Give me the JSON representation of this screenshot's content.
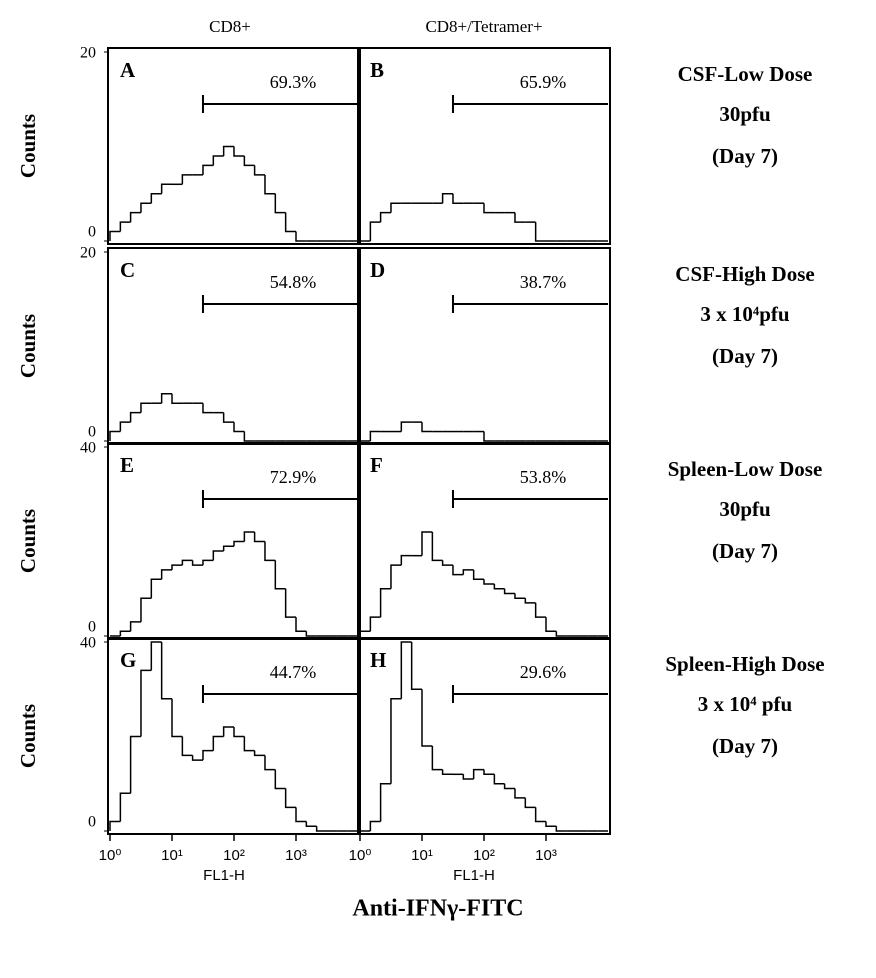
{
  "columns": [
    "CD8+",
    "CD8+/Tetramer+"
  ],
  "rows": [
    [
      "CSF-Low Dose",
      "30pfu",
      "(Day 7)"
    ],
    [
      "CSF-High Dose",
      "3 x 10⁴pfu",
      "(Day 7)"
    ],
    [
      "Spleen-Low Dose",
      "30pfu",
      "(Day 7)"
    ],
    [
      "Spleen-High Dose",
      "3 x 10⁴ pfu",
      "(Day 7)"
    ]
  ],
  "x_axis_label": "Anti-IFNγ-FITC",
  "chart_data": [
    {
      "type": "histogram",
      "title": "A",
      "annotation": "69.3%",
      "gate": [
        31.6,
        10000
      ],
      "color": "#000000",
      "xscale": "log",
      "xlim": [
        1,
        10000
      ],
      "ylim": [
        0,
        20
      ],
      "yticks": [
        0,
        20
      ],
      "ylabel": "Counts",
      "bins": [
        1,
        1.47,
        2.15,
        3.16,
        4.64,
        6.81,
        10,
        14.7,
        21.5,
        31.6,
        46.4,
        68.1,
        100,
        147,
        215,
        316,
        464,
        681,
        1000,
        1468,
        2154,
        3162,
        4642,
        6813,
        10000
      ],
      "values": [
        1,
        2,
        3,
        4,
        5,
        6,
        6,
        7,
        7,
        8,
        9,
        10,
        9,
        8,
        7,
        5,
        3,
        1,
        0,
        0,
        0,
        0,
        0,
        0
      ]
    },
    {
      "type": "histogram",
      "title": "B",
      "annotation": "65.9%",
      "gate": [
        31.6,
        10000
      ],
      "color": "#000000",
      "xscale": "log",
      "xlim": [
        1,
        10000
      ],
      "ylim": [
        0,
        20
      ],
      "bins": [
        1,
        1.47,
        2.15,
        3.16,
        4.64,
        6.81,
        10,
        14.7,
        21.5,
        31.6,
        46.4,
        68.1,
        100,
        147,
        215,
        316,
        464,
        681,
        1000,
        1468,
        2154,
        3162,
        4642,
        6813,
        10000
      ],
      "values": [
        0,
        2,
        3,
        4,
        4,
        4,
        4,
        4,
        5,
        4,
        4,
        4,
        3,
        3,
        3,
        2,
        2,
        0,
        0,
        0,
        0,
        0,
        0,
        0
      ]
    },
    {
      "type": "histogram",
      "title": "C",
      "annotation": "54.8%",
      "gate": [
        31.6,
        10000
      ],
      "color": "#000000",
      "xscale": "log",
      "xlim": [
        1,
        10000
      ],
      "ylim": [
        0,
        20
      ],
      "yticks": [
        0,
        20
      ],
      "ylabel": "Counts",
      "bins": [
        1,
        1.47,
        2.15,
        3.16,
        4.64,
        6.81,
        10,
        14.7,
        21.5,
        31.6,
        46.4,
        68.1,
        100,
        147,
        215,
        316,
        464,
        681,
        1000,
        1468,
        2154,
        3162,
        4642,
        6813,
        10000
      ],
      "values": [
        1,
        2,
        3,
        4,
        4,
        5,
        4,
        4,
        4,
        3,
        3,
        2,
        1,
        0,
        0,
        0,
        0,
        0,
        0,
        0,
        0,
        0,
        0,
        0
      ]
    },
    {
      "type": "histogram",
      "title": "D",
      "annotation": "38.7%",
      "gate": [
        31.6,
        10000
      ],
      "color": "#000000",
      "xscale": "log",
      "xlim": [
        1,
        10000
      ],
      "ylim": [
        0,
        20
      ],
      "bins": [
        1,
        1.47,
        2.15,
        3.16,
        4.64,
        6.81,
        10,
        14.7,
        21.5,
        31.6,
        46.4,
        68.1,
        100,
        147,
        215,
        316,
        464,
        681,
        1000,
        1468,
        2154,
        3162,
        4642,
        6813,
        10000
      ],
      "values": [
        0,
        1,
        1,
        1,
        2,
        2,
        1,
        1,
        1,
        1,
        1,
        1,
        0,
        0,
        0,
        0,
        0,
        0,
        0,
        0,
        0,
        0,
        0,
        0
      ]
    },
    {
      "type": "histogram",
      "title": "E",
      "annotation": "72.9%",
      "gate": [
        31.6,
        10000
      ],
      "color": "#000000",
      "xscale": "log",
      "xlim": [
        1,
        10000
      ],
      "ylim": [
        0,
        40
      ],
      "yticks": [
        0,
        40
      ],
      "ylabel": "Counts",
      "bins": [
        1,
        1.47,
        2.15,
        3.16,
        4.64,
        6.81,
        10,
        14.7,
        21.5,
        31.6,
        46.4,
        68.1,
        100,
        147,
        215,
        316,
        464,
        681,
        1000,
        1468,
        2154,
        3162,
        4642,
        6813,
        10000
      ],
      "values": [
        0,
        1,
        3,
        8,
        12,
        14,
        15,
        16,
        15,
        16,
        18,
        19,
        20,
        22,
        20,
        16,
        10,
        4,
        1,
        0,
        0,
        0,
        0,
        0
      ]
    },
    {
      "type": "histogram",
      "title": "F",
      "annotation": "53.8%",
      "gate": [
        31.6,
        10000
      ],
      "color": "#000000",
      "xscale": "log",
      "xlim": [
        1,
        10000
      ],
      "ylim": [
        0,
        40
      ],
      "bins": [
        1,
        1.47,
        2.15,
        3.16,
        4.64,
        6.81,
        10,
        14.7,
        21.5,
        31.6,
        46.4,
        68.1,
        100,
        147,
        215,
        316,
        464,
        681,
        1000,
        1468,
        2154,
        3162,
        4642,
        6813,
        10000
      ],
      "values": [
        1,
        4,
        10,
        15,
        17,
        17,
        22,
        16,
        15,
        13,
        14,
        12,
        11,
        10,
        9,
        8,
        7,
        4,
        1,
        0,
        0,
        0,
        0,
        0
      ]
    },
    {
      "type": "histogram",
      "title": "G",
      "annotation": "44.7%",
      "gate": [
        31.6,
        10000
      ],
      "color": "#000000",
      "xscale": "log",
      "xlim": [
        1,
        10000
      ],
      "ylim": [
        0,
        40
      ],
      "yticks": [
        0,
        40
      ],
      "ylabel": "Counts",
      "xticks": [
        {
          "value": 1,
          "label": "10⁰"
        },
        {
          "value": 10,
          "label": "10¹"
        },
        {
          "value": 100,
          "label": "10²"
        },
        {
          "value": 1000,
          "label": "10³"
        }
      ],
      "xlabel": "FL1-H",
      "bins": [
        1,
        1.47,
        2.15,
        3.16,
        4.64,
        6.81,
        10,
        14.7,
        21.5,
        31.6,
        46.4,
        68.1,
        100,
        147,
        215,
        316,
        464,
        681,
        1000,
        1468,
        2154,
        3162,
        4642,
        6813,
        10000
      ],
      "values": [
        2,
        8,
        20,
        34,
        40,
        28,
        20,
        16,
        15,
        17,
        20,
        22,
        20,
        17,
        16,
        13,
        9,
        5,
        2,
        1,
        0,
        0,
        0,
        0
      ]
    },
    {
      "type": "histogram",
      "title": "H",
      "annotation": "29.6%",
      "gate": [
        31.6,
        10000
      ],
      "color": "#000000",
      "xscale": "log",
      "xlim": [
        1,
        10000
      ],
      "ylim": [
        0,
        40
      ],
      "xticks": [
        {
          "value": 1,
          "label": "10⁰"
        },
        {
          "value": 10,
          "label": "10¹"
        },
        {
          "value": 100,
          "label": "10²"
        },
        {
          "value": 1000,
          "label": "10³"
        }
      ],
      "xlabel": "FL1-H",
      "bins": [
        1,
        1.47,
        2.15,
        3.16,
        4.64,
        6.81,
        10,
        14.7,
        21.5,
        31.6,
        46.4,
        68.1,
        100,
        147,
        215,
        316,
        464,
        681,
        1000,
        1468,
        2154,
        3162,
        4642,
        6813,
        10000
      ],
      "values": [
        0,
        2,
        10,
        28,
        40,
        30,
        18,
        13,
        12,
        12,
        11,
        13,
        12,
        10,
        9,
        7,
        5,
        2,
        1,
        0,
        0,
        0,
        0,
        0
      ]
    }
  ]
}
